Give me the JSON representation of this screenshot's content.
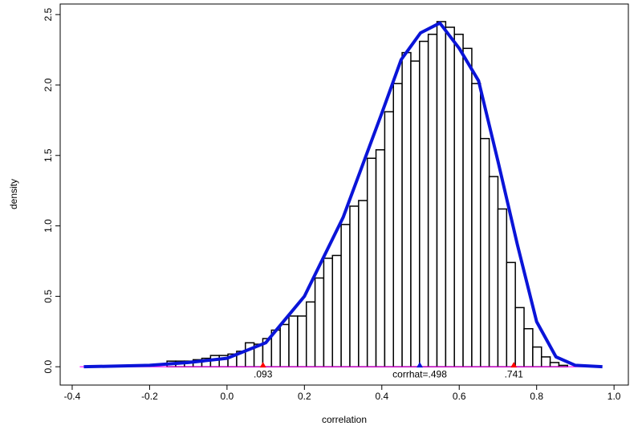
{
  "chart_data": {
    "type": "histogram",
    "xlabel": "correlation",
    "ylabel": "density",
    "bins": [
      -0.155,
      -0.1325,
      -0.11,
      -0.0875,
      -0.065,
      -0.0425,
      -0.02,
      0.0025,
      0.025,
      0.0475,
      0.07,
      0.0925,
      0.115,
      0.1375,
      0.16,
      0.1825,
      0.205,
      0.2275,
      0.25,
      0.2725,
      0.295,
      0.3175,
      0.34,
      0.3625,
      0.385,
      0.4075,
      0.43,
      0.4525,
      0.475,
      0.4975,
      0.52,
      0.5425,
      0.565,
      0.5875,
      0.61,
      0.6325,
      0.655,
      0.6775,
      0.7,
      0.7225,
      0.745,
      0.7675,
      0.79,
      0.8125,
      0.835,
      0.8575,
      0.88
    ],
    "values": [
      0.04,
      0.04,
      0.04,
      0.05,
      0.06,
      0.08,
      0.08,
      0.09,
      0.11,
      0.17,
      0.16,
      0.2,
      0.26,
      0.3,
      0.36,
      0.36,
      0.46,
      0.63,
      0.77,
      0.79,
      1.01,
      1.14,
      1.18,
      1.48,
      1.54,
      1.81,
      2.01,
      2.23,
      2.17,
      2.31,
      2.36,
      2.45,
      2.41,
      2.36,
      2.26,
      2.01,
      1.62,
      1.35,
      1.12,
      0.74,
      0.42,
      0.27,
      0.14,
      0.07,
      0.03,
      0.01
    ],
    "bar_color": "#ffffff",
    "edge_color": "#000000",
    "curve": {
      "color": "#0a14d8",
      "x": [
        -0.37,
        -0.2,
        -0.1,
        0,
        0.1,
        0.2,
        0.3,
        0.4,
        0.45,
        0.5,
        0.55,
        0.6,
        0.65,
        0.7,
        0.75,
        0.8,
        0.85,
        0.9,
        0.97
      ],
      "values": [
        0,
        0.01,
        0.03,
        0.06,
        0.17,
        0.5,
        1.06,
        1.8,
        2.18,
        2.37,
        2.44,
        2.26,
        2.03,
        1.46,
        0.87,
        0.32,
        0.07,
        0.01,
        0
      ]
    },
    "baseline": {
      "value": 0,
      "color": "#ff00ff"
    },
    "annotations": [
      {
        "x": 0.093,
        "label": ".093",
        "color": "#ff0000"
      },
      {
        "x": 0.498,
        "label": "corrhat=.498",
        "color": "#0a14d8"
      },
      {
        "x": 0.741,
        "label": ".741",
        "color": "#ff0000"
      }
    ],
    "xlim": [
      -0.431,
      1.037
    ],
    "ylim": [
      -0.13,
      2.575
    ],
    "xticks": [
      -0.4,
      -0.2,
      {
        "value": 0,
        "label": "0.0"
      },
      0.2,
      0.4,
      0.6,
      0.8,
      {
        "value": 1,
        "label": "1.0"
      }
    ],
    "yticks": [
      {
        "value": 0,
        "label": "0.0"
      },
      0.5,
      {
        "value": 1,
        "label": "1.0"
      },
      1.5,
      {
        "value": 2,
        "label": "2.0"
      },
      2.5
    ]
  }
}
